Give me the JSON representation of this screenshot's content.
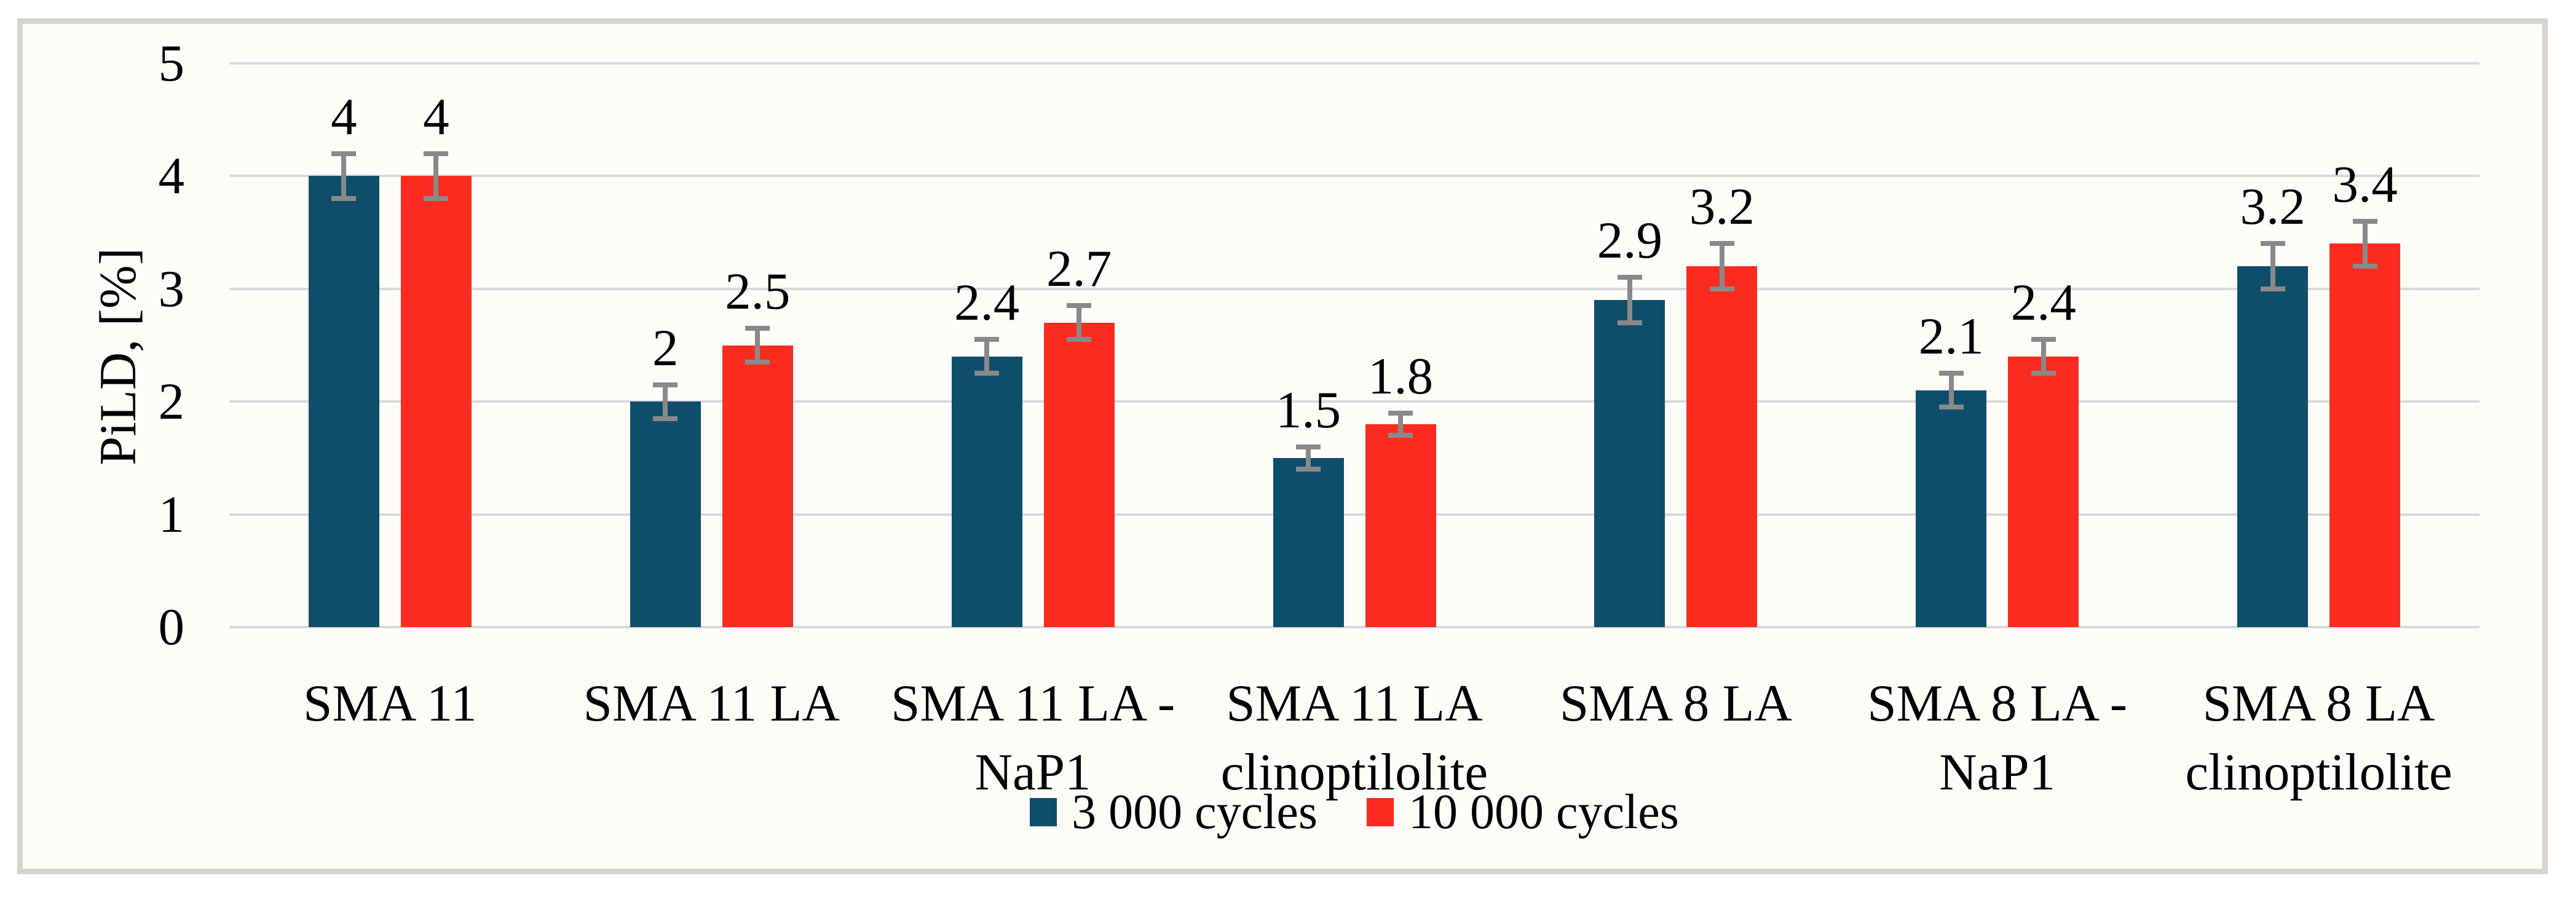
{
  "figure": {
    "background": "#ffffff",
    "frame_border_color": "#d6d3ce",
    "frame_background": "#fdfcf9"
  },
  "chart_data": {
    "type": "bar",
    "title": "",
    "xlabel": "",
    "ylabel": "PiLD, [%]",
    "ylim": [
      0,
      5
    ],
    "yticks": [
      "5",
      "4",
      "3",
      "2",
      "1",
      "0"
    ],
    "grid": true,
    "gridline_color": "#d9d9d9",
    "error_bar_color": "#898989",
    "text_color": "#000000",
    "legend_position": "bottom-center",
    "categories": [
      [
        "SMA 11"
      ],
      [
        "SMA 11 LA"
      ],
      [
        "SMA 11 LA -",
        "NaP1"
      ],
      [
        "SMA 11 LA",
        "clinoptilolite"
      ],
      [
        "SMA 8 LA"
      ],
      [
        "SMA 8 LA -",
        "NaP1"
      ],
      [
        "SMA 8 LA",
        "clinoptilolite"
      ]
    ],
    "series": [
      {
        "name": "3 000 cycles",
        "color": "#0e4e6b",
        "values": [
          4,
          2,
          2.4,
          1.5,
          2.9,
          2.1,
          3.2
        ],
        "value_labels": [
          "4",
          "2",
          "2.4",
          "1.5",
          "2.9",
          "2.1",
          "3.2"
        ],
        "errors": [
          0.2,
          0.15,
          0.15,
          0.1,
          0.2,
          0.15,
          0.2
        ]
      },
      {
        "name": "10 000 cycles",
        "color": "#fb2b1f",
        "values": [
          4,
          2.5,
          2.7,
          1.8,
          3.2,
          2.4,
          3.4
        ],
        "value_labels": [
          "4",
          "2.5",
          "2.7",
          "1.8",
          "3.2",
          "2.4",
          "3.4"
        ],
        "errors": [
          0.2,
          0.15,
          0.15,
          0.1,
          0.2,
          0.15,
          0.2
        ]
      }
    ]
  }
}
